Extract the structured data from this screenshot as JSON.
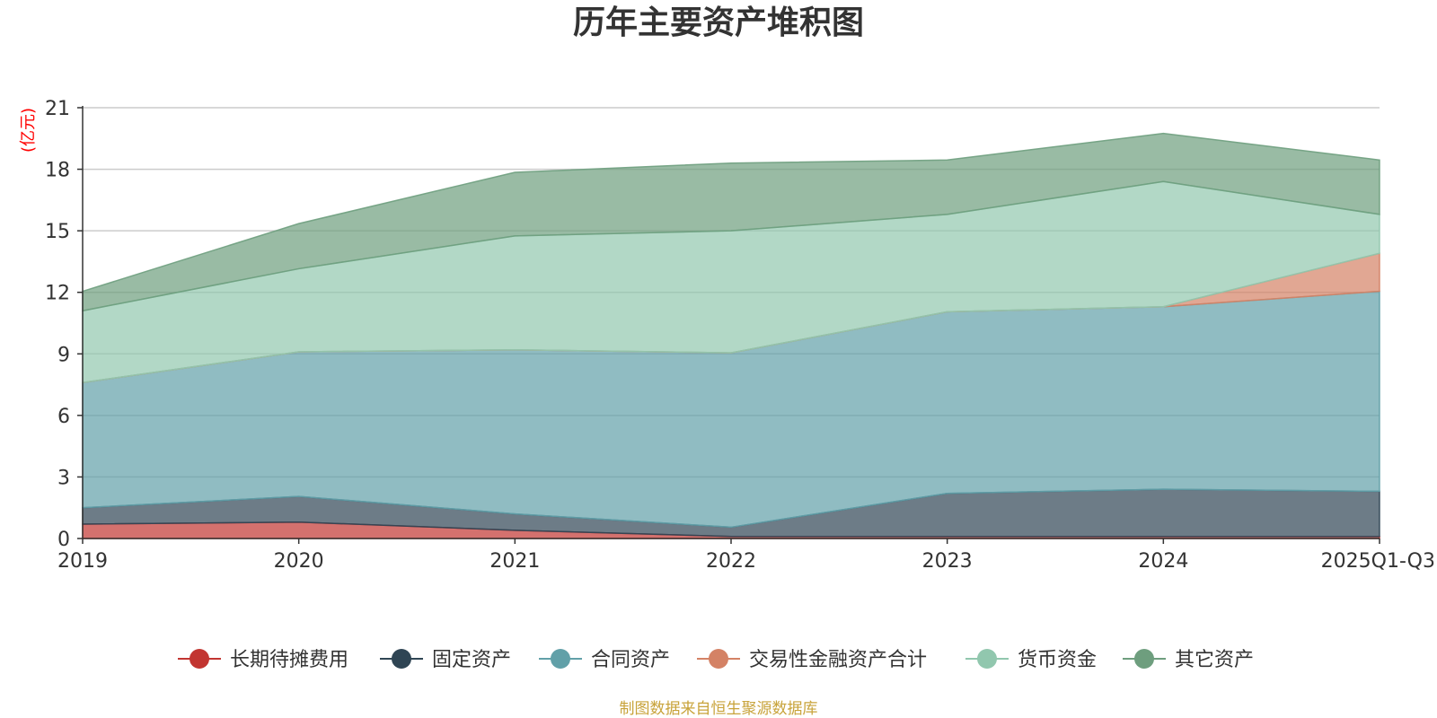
{
  "chart_data": {
    "type": "area",
    "stacked": true,
    "title": "历年主要资产堆积图",
    "unit_label": "(亿元)",
    "categories": [
      "2019",
      "2020",
      "2021",
      "2022",
      "2023",
      "2024",
      "2025Q1-Q3"
    ],
    "ylim": [
      0,
      21
    ],
    "yticks": [
      0,
      3,
      6,
      9,
      12,
      15,
      18,
      21
    ],
    "grid": true,
    "legend_position": "bottom",
    "series": [
      {
        "name": "长期待摊费用",
        "color": "#c23531",
        "values": [
          0.7,
          0.8,
          0.4,
          0.1,
          0.1,
          0.1,
          0.1
        ]
      },
      {
        "name": "固定资产",
        "color": "#2f4554",
        "values": [
          0.8,
          1.25,
          0.8,
          0.45,
          2.1,
          2.3,
          2.2
        ]
      },
      {
        "name": "合同资产",
        "color": "#61a0a8",
        "values": [
          6.1,
          7.05,
          8.0,
          8.5,
          8.85,
          8.9,
          9.75
        ]
      },
      {
        "name": "交易性金融资产合计",
        "color": "#d48265",
        "values": [
          0,
          0,
          0,
          0,
          0,
          0,
          1.85
        ]
      },
      {
        "name": "货币资金",
        "color": "#91c7ae",
        "values": [
          3.5,
          4.05,
          5.55,
          5.95,
          4.75,
          6.1,
          1.9
        ]
      },
      {
        "name": "其它资产",
        "color": "#6e9e7e",
        "values": [
          0.95,
          2.2,
          3.1,
          3.3,
          2.65,
          2.35,
          2.65
        ]
      }
    ]
  },
  "source_note": "制图数据来自恒生聚源数据库",
  "colors": {
    "unit_label": "#ff0000",
    "source_note": "#c8a33a",
    "grid": "#cccccc",
    "axis": "#333333"
  }
}
